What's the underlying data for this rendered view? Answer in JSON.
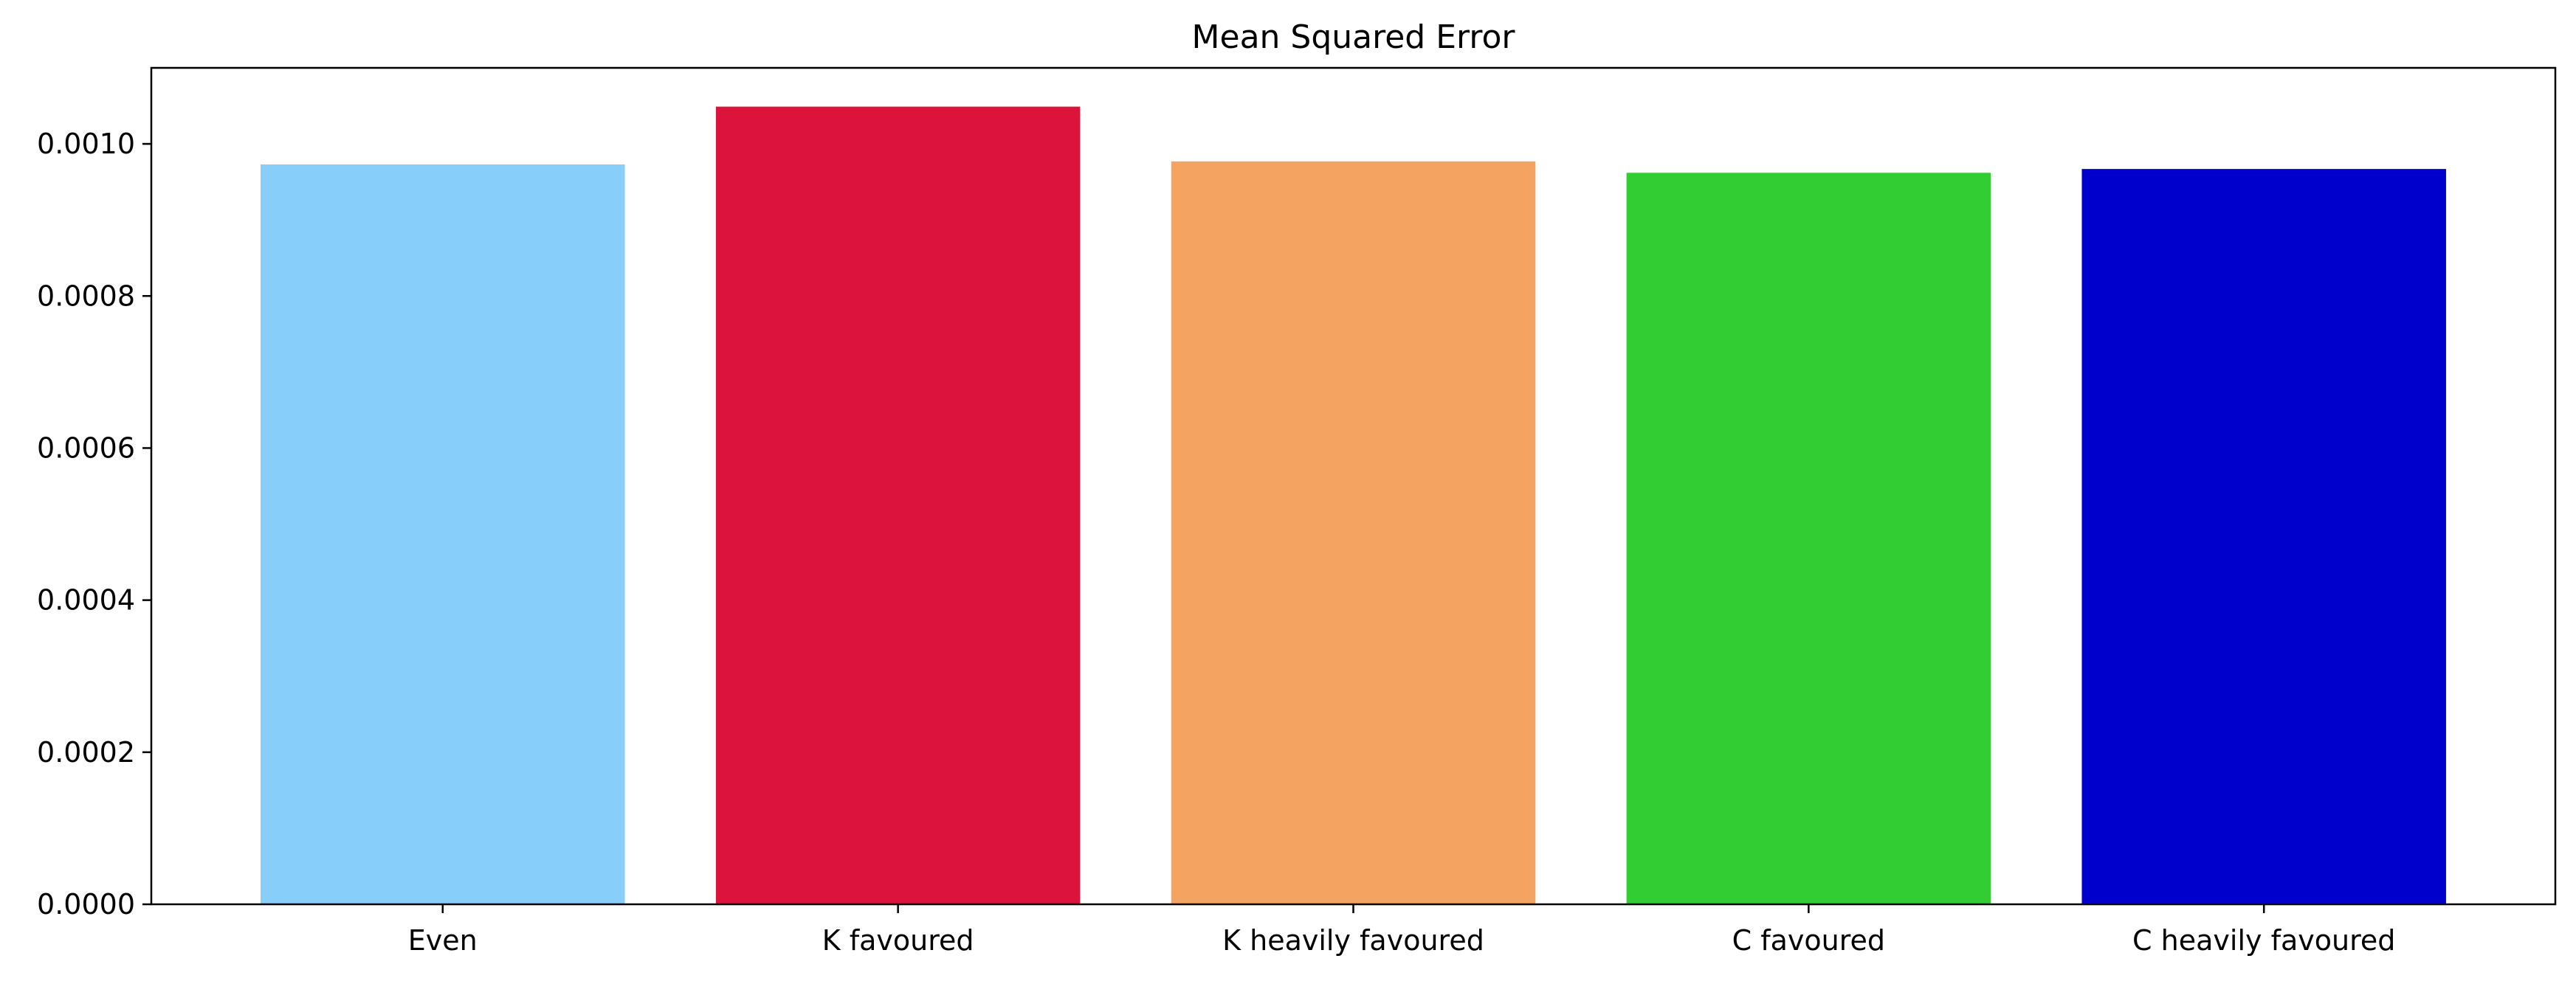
{
  "chart_data": {
    "type": "bar",
    "title": "Mean Squared Error",
    "xlabel": "",
    "ylabel": "",
    "categories": [
      "Even",
      "K favoured",
      "K heavily favoured",
      "C favoured",
      "C heavily favoured"
    ],
    "values": [
      0.000973,
      0.001049,
      0.000977,
      0.000962,
      0.000967
    ],
    "colors": [
      "#87CEFA",
      "#DC143C",
      "#F4A460",
      "#32CD32",
      "#0000CD"
    ],
    "ylim": [
      0,
      0.0011
    ],
    "yticks": [
      0,
      0.0002,
      0.0004,
      0.0006,
      0.0008,
      0.001
    ],
    "ytick_labels": [
      "0.0000",
      "0.0002",
      "0.0004",
      "0.0006",
      "0.0008",
      "0.0010"
    ],
    "grid": false,
    "legend": false
  }
}
